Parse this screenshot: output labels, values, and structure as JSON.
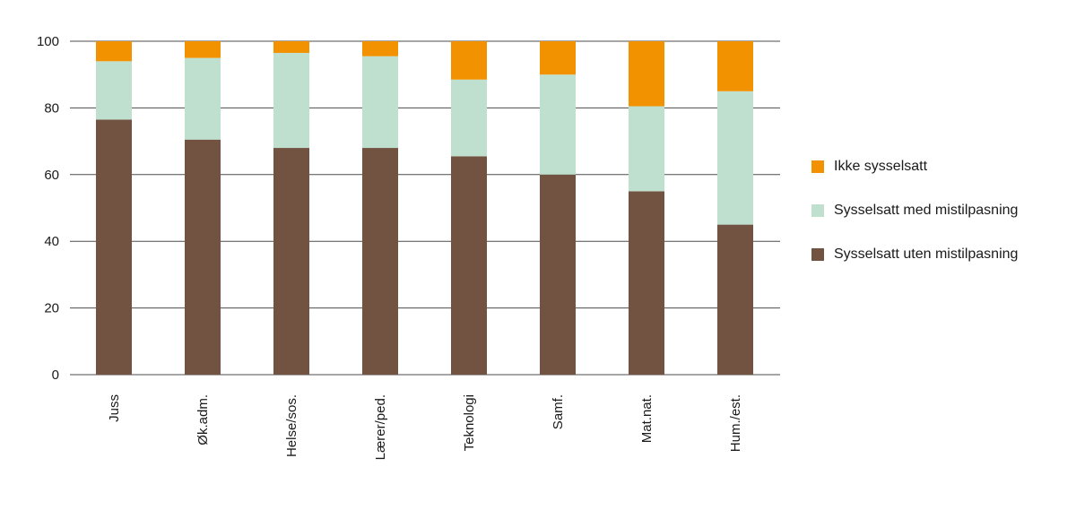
{
  "chart_data": {
    "type": "bar",
    "stacked": true,
    "categories": [
      "Juss",
      "Øk.adm.",
      "Helse/sos.",
      "Lærer/ped.",
      "Teknologi",
      "Samf.",
      "Mat.nat.",
      "Hum./est."
    ],
    "series": [
      {
        "name": "Sysselsatt uten mistilpasning",
        "color": "#725341",
        "values": [
          76.5,
          70.5,
          68,
          68,
          65.5,
          60,
          55,
          45
        ]
      },
      {
        "name": "Sysselsatt med mistilpasning",
        "color": "#bfe0cf",
        "values": [
          17.5,
          24.5,
          28.5,
          27.5,
          23,
          30,
          25.5,
          40
        ]
      },
      {
        "name": "Ikke sysselsatt",
        "color": "#f29200",
        "values": [
          6,
          5,
          3.5,
          4.5,
          11.5,
          10,
          19.5,
          15
        ]
      }
    ],
    "title": "",
    "xlabel": "",
    "ylabel": "",
    "ylim": [
      0,
      100
    ],
    "yticks": [
      "0",
      "20",
      "40",
      "60",
      "80",
      "100"
    ],
    "grid": true,
    "legend_position": "right"
  },
  "legend": {
    "items": [
      {
        "label": "Ikke sysselsatt",
        "color": "#f29200"
      },
      {
        "label": "Sysselsatt med mistilpasning",
        "color": "#bfe0cf"
      },
      {
        "label": "Sysselsatt uten mistilpasning",
        "color": "#725341"
      }
    ]
  }
}
